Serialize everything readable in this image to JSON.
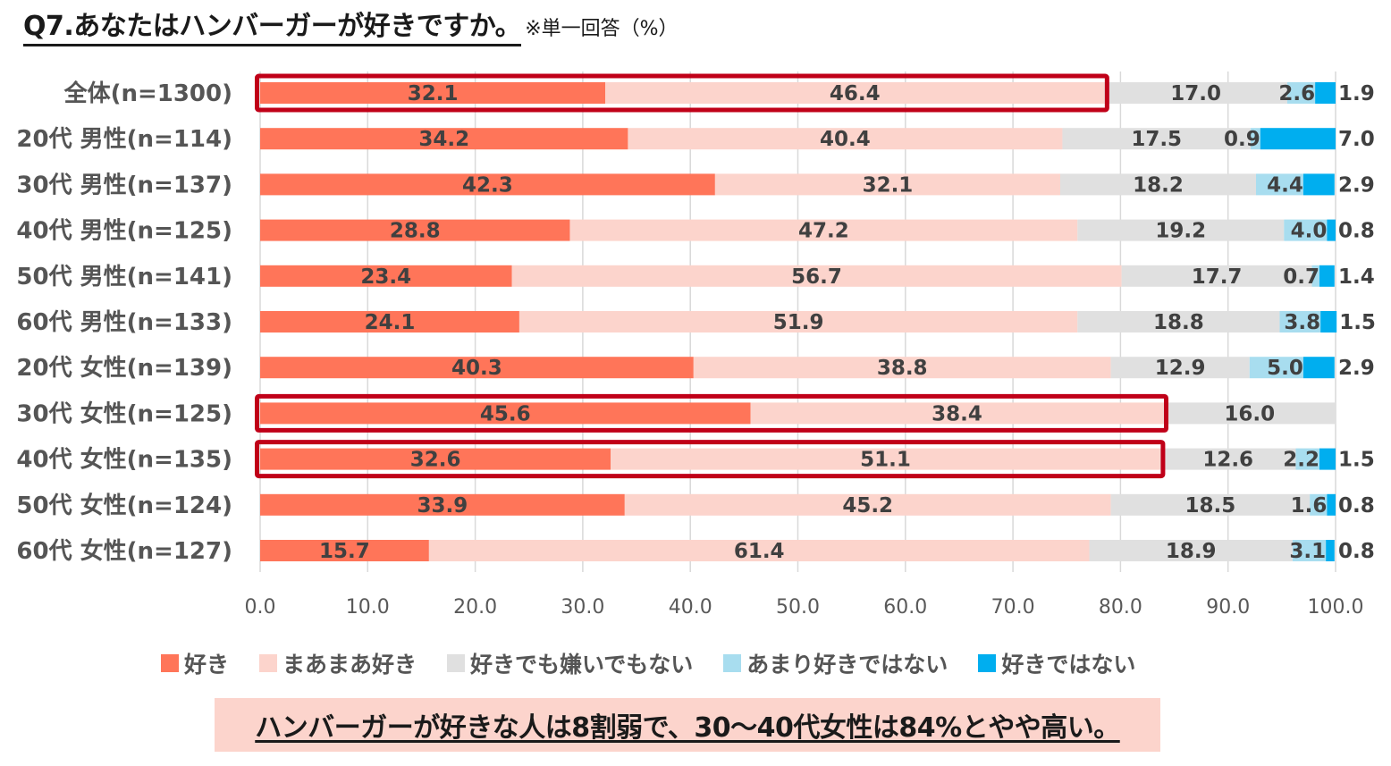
{
  "title": {
    "main": "Q7.あなたはハンバーガーが好きですか。",
    "note": "※単一回答（%）"
  },
  "colors": {
    "like": "#ff7559",
    "somewhat_like": "#fcd4cc",
    "neutral": "#e0e0e0",
    "not_really": "#a8ddef",
    "dislike": "#00aeef",
    "highlight_border": "#c00018",
    "label_text": "#404040"
  },
  "chart_data": {
    "type": "bar",
    "orientation": "horizontal",
    "stacked": true,
    "title": "Q7.あなたはハンバーガーが好きですか。",
    "xlim": [
      0,
      100
    ],
    "xticks": [
      "0.0",
      "10.0",
      "20.0",
      "30.0",
      "40.0",
      "50.0",
      "60.0",
      "70.0",
      "80.0",
      "90.0",
      "100.0"
    ],
    "grid": true,
    "legend_position": "bottom",
    "categories": [
      "全体(n=1300)",
      "20代 男性(n=114)",
      "30代 男性(n=137)",
      "40代 男性(n=125)",
      "50代 男性(n=141)",
      "60代 男性(n=133)",
      "20代 女性(n=139)",
      "30代 女性(n=125)",
      "40代 女性(n=135)",
      "50代 女性(n=124)",
      "60代 女性(n=127)"
    ],
    "series": [
      {
        "name": "好き",
        "color_key": "like",
        "values": [
          32.1,
          34.2,
          42.3,
          28.8,
          23.4,
          24.1,
          40.3,
          45.6,
          32.6,
          33.9,
          15.7
        ]
      },
      {
        "name": "まあまあ好き",
        "color_key": "somewhat_like",
        "values": [
          46.4,
          40.4,
          32.1,
          47.2,
          56.7,
          51.9,
          38.8,
          38.4,
          51.1,
          45.2,
          61.4
        ]
      },
      {
        "name": "好きでも嫌いでもない",
        "color_key": "neutral",
        "values": [
          17.0,
          17.5,
          18.2,
          19.2,
          17.7,
          18.8,
          12.9,
          16.0,
          12.6,
          18.5,
          18.9
        ]
      },
      {
        "name": "あまり好きではない",
        "color_key": "not_really",
        "values": [
          2.6,
          0.9,
          4.4,
          4.0,
          0.7,
          3.8,
          5.0,
          0,
          2.2,
          1.6,
          3.1
        ]
      },
      {
        "name": "好きではない",
        "color_key": "dislike",
        "values": [
          1.9,
          7.0,
          2.9,
          0.8,
          1.4,
          1.5,
          2.9,
          0,
          1.5,
          0.8,
          0.8
        ]
      }
    ],
    "data_labels": [
      [
        "32.1",
        "46.4",
        "17.0",
        "2.6",
        "1.9"
      ],
      [
        "34.2",
        "40.4",
        "17.5",
        "0.9",
        "7.0"
      ],
      [
        "42.3",
        "32.1",
        "18.2",
        "4.4",
        "2.9"
      ],
      [
        "28.8",
        "47.2",
        "19.2",
        "4.0",
        "0.8"
      ],
      [
        "23.4",
        "56.7",
        "17.7",
        "0.7",
        "1.4"
      ],
      [
        "24.1",
        "51.9",
        "18.8",
        "3.8",
        "1.5"
      ],
      [
        "40.3",
        "38.8",
        "12.9",
        "5.0",
        "2.9"
      ],
      [
        "45.6",
        "38.4",
        "16.0",
        "",
        ""
      ],
      [
        "32.6",
        "51.1",
        "12.6",
        "2.2",
        "1.5"
      ],
      [
        "33.9",
        "45.2",
        "18.5",
        "1.6",
        "0.8"
      ],
      [
        "15.7",
        "61.4",
        "18.9",
        "3.1",
        "0.8"
      ]
    ],
    "highlights": [
      {
        "row": 0,
        "value": 78.5
      },
      {
        "row": 7,
        "value": 84.0
      },
      {
        "row": 8,
        "value": 83.7
      }
    ]
  },
  "callout": {
    "text": "ハンバーガーが好きな人は8割弱で、30～40代女性は84%とやや高い。"
  }
}
